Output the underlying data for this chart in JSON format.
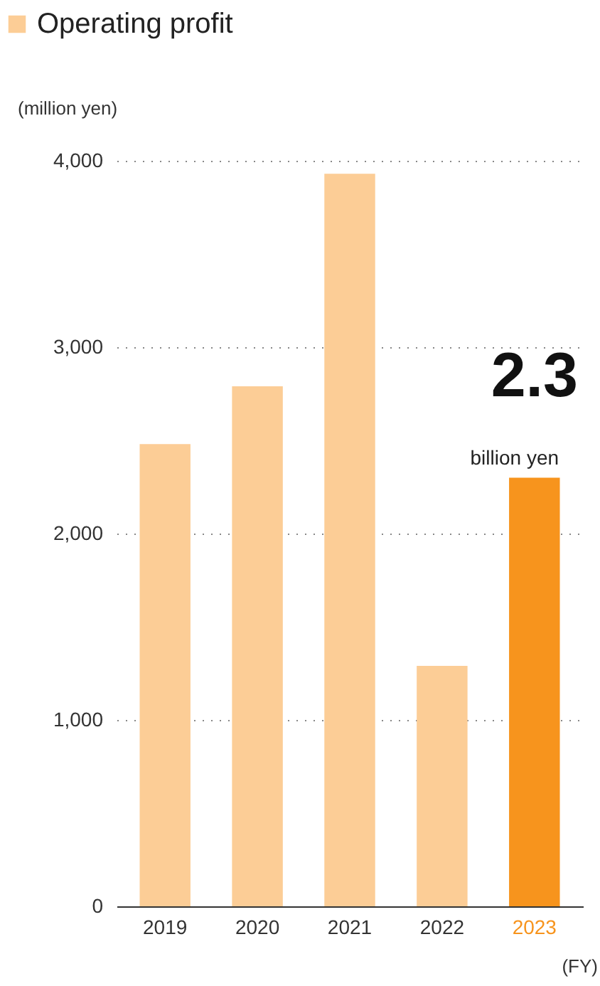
{
  "chart_data": {
    "type": "bar",
    "categories": [
      "2019",
      "2020",
      "2021",
      "2022",
      "2023"
    ],
    "series": [
      {
        "name": "Operating profit",
        "values": [
          2480,
          2790,
          3930,
          1290,
          2300
        ],
        "colors": [
          "#fccd96",
          "#fccd96",
          "#fccd96",
          "#fccd96",
          "#f7941d"
        ]
      }
    ],
    "ylabel": "(million yen)",
    "xlabel": "(FY)",
    "ylim": [
      0,
      4000
    ],
    "yticks": [
      0,
      {
        "value": 1000,
        "label": "1,000"
      },
      {
        "value": 2000,
        "label": "2,000"
      },
      {
        "value": 3000,
        "label": "3,000"
      },
      {
        "value": 4000,
        "label": "4,000"
      }
    ],
    "grid": "y",
    "legend": "top left",
    "annotations": [
      {
        "text": "2.3",
        "x": "2023",
        "y": 2300
      },
      {
        "text": "billion yen",
        "x": "2023",
        "y": 2300
      }
    ]
  }
}
